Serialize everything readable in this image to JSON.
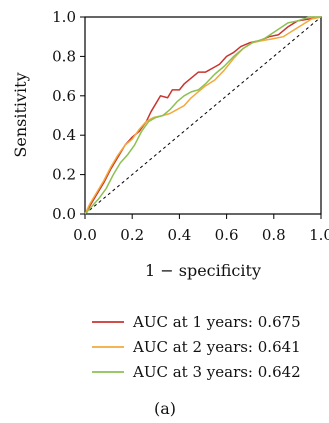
{
  "chart_data": {
    "type": "line",
    "title": "",
    "xlabel": "1 − specificity",
    "ylabel": "Sensitivity",
    "xlim": [
      0,
      1
    ],
    "ylim": [
      0,
      1
    ],
    "xticks": [
      "0.0",
      "0.2",
      "0.4",
      "0.6",
      "0.8",
      "1.0"
    ],
    "yticks": [
      "0.0",
      "0.2",
      "0.4",
      "0.6",
      "0.8",
      "1.0"
    ],
    "grid": false,
    "legend_position": "below",
    "reference_line": "diagonal",
    "series": [
      {
        "name": "AUC at 1 years: 0.675",
        "color": "#c9342f",
        "points": [
          [
            0,
            0
          ],
          [
            0.02,
            0.04
          ],
          [
            0.05,
            0.1
          ],
          [
            0.08,
            0.16
          ],
          [
            0.11,
            0.23
          ],
          [
            0.14,
            0.29
          ],
          [
            0.17,
            0.35
          ],
          [
            0.2,
            0.39
          ],
          [
            0.23,
            0.42
          ],
          [
            0.26,
            0.47
          ],
          [
            0.28,
            0.52
          ],
          [
            0.3,
            0.56
          ],
          [
            0.32,
            0.6
          ],
          [
            0.35,
            0.59
          ],
          [
            0.37,
            0.63
          ],
          [
            0.4,
            0.63
          ],
          [
            0.42,
            0.66
          ],
          [
            0.45,
            0.69
          ],
          [
            0.48,
            0.72
          ],
          [
            0.51,
            0.72
          ],
          [
            0.54,
            0.74
          ],
          [
            0.57,
            0.76
          ],
          [
            0.6,
            0.8
          ],
          [
            0.63,
            0.82
          ],
          [
            0.66,
            0.85
          ],
          [
            0.7,
            0.87
          ],
          [
            0.74,
            0.88
          ],
          [
            0.78,
            0.9
          ],
          [
            0.82,
            0.91
          ],
          [
            0.86,
            0.95
          ],
          [
            0.9,
            0.98
          ],
          [
            0.95,
            0.99
          ],
          [
            1,
            1
          ]
        ]
      },
      {
        "name": "AUC at 2 years: 0.641",
        "color": "#f2a93b",
        "points": [
          [
            0,
            0
          ],
          [
            0.02,
            0.05
          ],
          [
            0.05,
            0.11
          ],
          [
            0.08,
            0.17
          ],
          [
            0.11,
            0.24
          ],
          [
            0.14,
            0.3
          ],
          [
            0.17,
            0.35
          ],
          [
            0.2,
            0.38
          ],
          [
            0.23,
            0.43
          ],
          [
            0.26,
            0.47
          ],
          [
            0.29,
            0.49
          ],
          [
            0.33,
            0.5
          ],
          [
            0.36,
            0.51
          ],
          [
            0.39,
            0.53
          ],
          [
            0.42,
            0.55
          ],
          [
            0.45,
            0.59
          ],
          [
            0.48,
            0.62
          ],
          [
            0.51,
            0.65
          ],
          [
            0.55,
            0.68
          ],
          [
            0.59,
            0.73
          ],
          [
            0.63,
            0.79
          ],
          [
            0.67,
            0.84
          ],
          [
            0.71,
            0.87
          ],
          [
            0.75,
            0.88
          ],
          [
            0.8,
            0.89
          ],
          [
            0.84,
            0.9
          ],
          [
            0.88,
            0.93
          ],
          [
            0.92,
            0.96
          ],
          [
            0.96,
            0.99
          ],
          [
            1,
            1
          ]
        ]
      },
      {
        "name": "AUC at 3 years: 0.642",
        "color": "#8cc152",
        "points": [
          [
            0,
            0
          ],
          [
            0.03,
            0.04
          ],
          [
            0.06,
            0.08
          ],
          [
            0.09,
            0.13
          ],
          [
            0.12,
            0.2
          ],
          [
            0.15,
            0.26
          ],
          [
            0.18,
            0.3
          ],
          [
            0.21,
            0.35
          ],
          [
            0.24,
            0.42
          ],
          [
            0.27,
            0.47
          ],
          [
            0.3,
            0.49
          ],
          [
            0.33,
            0.5
          ],
          [
            0.36,
            0.53
          ],
          [
            0.39,
            0.57
          ],
          [
            0.42,
            0.6
          ],
          [
            0.45,
            0.62
          ],
          [
            0.48,
            0.63
          ],
          [
            0.51,
            0.66
          ],
          [
            0.55,
            0.71
          ],
          [
            0.59,
            0.75
          ],
          [
            0.63,
            0.8
          ],
          [
            0.67,
            0.84
          ],
          [
            0.71,
            0.87
          ],
          [
            0.76,
            0.89
          ],
          [
            0.81,
            0.93
          ],
          [
            0.86,
            0.97
          ],
          [
            0.9,
            0.98
          ],
          [
            0.95,
            1
          ],
          [
            1,
            1
          ]
        ]
      }
    ]
  },
  "panel_label": "(a)"
}
